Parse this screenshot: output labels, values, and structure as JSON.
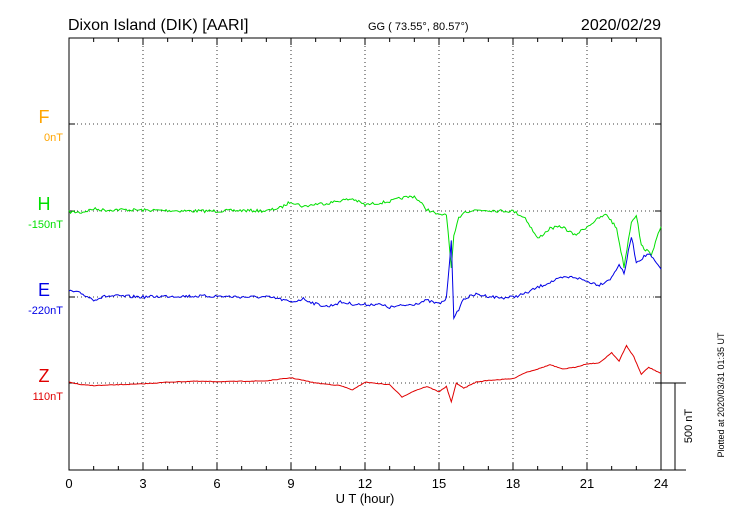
{
  "header": {
    "station": "Dixon Island (DIK)  [AARI]",
    "coords": "GG ( 73.55°,  80.57°)",
    "date": "2020/02/29"
  },
  "footer": {
    "plotted": "Plotted at 2020/03/31 01:35 UT"
  },
  "colors": {
    "F": "#ffa500",
    "H": "#00e000",
    "E": "#0000e6",
    "Z": "#e00000"
  },
  "chart_data": {
    "type": "line",
    "xlabel": "U T (hour)",
    "x_ticks": [
      "0",
      "3",
      "6",
      "9",
      "12",
      "15",
      "18",
      "21",
      "24"
    ],
    "xlim": [
      0,
      24
    ],
    "scale_bar": "500 nT",
    "grid": true,
    "series": [
      {
        "name": "F",
        "baseline": "0nT",
        "points": []
      },
      {
        "name": "H",
        "baseline": "-150nT",
        "points": [
          [
            0,
            -5
          ],
          [
            0.5,
            -8
          ],
          [
            1,
            12
          ],
          [
            1.5,
            5
          ],
          [
            2,
            8
          ],
          [
            3,
            5
          ],
          [
            4,
            3
          ],
          [
            5,
            0
          ],
          [
            6,
            0
          ],
          [
            7,
            3
          ],
          [
            8,
            0
          ],
          [
            8.6,
            20
          ],
          [
            9,
            55
          ],
          [
            9.5,
            25
          ],
          [
            10,
            40
          ],
          [
            10.5,
            45
          ],
          [
            11,
            60
          ],
          [
            11.5,
            70
          ],
          [
            12,
            35
          ],
          [
            12.5,
            45
          ],
          [
            13,
            55
          ],
          [
            13.5,
            75
          ],
          [
            14,
            85
          ],
          [
            14.3,
            40
          ],
          [
            14.5,
            10
          ],
          [
            15,
            -25
          ],
          [
            15.3,
            -15
          ],
          [
            15.5,
            -330
          ],
          [
            15.6,
            -150
          ],
          [
            15.8,
            -40
          ],
          [
            16,
            -5
          ],
          [
            16.5,
            5
          ],
          [
            17,
            5
          ],
          [
            17.5,
            0
          ],
          [
            18,
            0
          ],
          [
            18.5,
            -40
          ],
          [
            19,
            -160
          ],
          [
            19.5,
            -100
          ],
          [
            20,
            -90
          ],
          [
            20.5,
            -140
          ],
          [
            21,
            -90
          ],
          [
            21.5,
            -40
          ],
          [
            21.8,
            -20
          ],
          [
            22.2,
            -100
          ],
          [
            22.5,
            -320
          ],
          [
            22.8,
            -60
          ],
          [
            23,
            -20
          ],
          [
            23.2,
            -200
          ],
          [
            23.6,
            -250
          ],
          [
            24,
            -90
          ]
        ]
      },
      {
        "name": "E",
        "baseline": "-220nT",
        "points": [
          [
            0,
            35
          ],
          [
            0.5,
            20
          ],
          [
            1,
            -15
          ],
          [
            1.5,
            5
          ],
          [
            2,
            5
          ],
          [
            3,
            0
          ],
          [
            4,
            5
          ],
          [
            5,
            5
          ],
          [
            6,
            5
          ],
          [
            7,
            0
          ],
          [
            8,
            0
          ],
          [
            8.5,
            -10
          ],
          [
            9,
            -30
          ],
          [
            9.5,
            -10
          ],
          [
            10,
            -40
          ],
          [
            10.5,
            -55
          ],
          [
            11,
            -30
          ],
          [
            11.5,
            -40
          ],
          [
            12,
            -45
          ],
          [
            12.5,
            -40
          ],
          [
            13,
            -60
          ],
          [
            13.5,
            -50
          ],
          [
            14,
            -40
          ],
          [
            14.5,
            -20
          ],
          [
            15,
            -40
          ],
          [
            15.3,
            -10
          ],
          [
            15.5,
            330
          ],
          [
            15.6,
            -130
          ],
          [
            15.8,
            -70
          ],
          [
            16,
            -10
          ],
          [
            16.5,
            15
          ],
          [
            17,
            5
          ],
          [
            17.5,
            -5
          ],
          [
            18,
            0
          ],
          [
            18.5,
            20
          ],
          [
            19,
            55
          ],
          [
            19.5,
            85
          ],
          [
            20,
            110
          ],
          [
            20.5,
            115
          ],
          [
            21,
            90
          ],
          [
            21.5,
            70
          ],
          [
            22,
            110
          ],
          [
            22.3,
            190
          ],
          [
            22.5,
            130
          ],
          [
            22.8,
            350
          ],
          [
            23,
            200
          ],
          [
            23.5,
            250
          ],
          [
            24,
            160
          ]
        ]
      },
      {
        "name": "Z",
        "baseline": "110nT",
        "points": [
          [
            0,
            5
          ],
          [
            0.5,
            -10
          ],
          [
            1,
            -15
          ],
          [
            2,
            -10
          ],
          [
            3,
            -5
          ],
          [
            4,
            5
          ],
          [
            5,
            10
          ],
          [
            6,
            8
          ],
          [
            7,
            10
          ],
          [
            8,
            12
          ],
          [
            9,
            30
          ],
          [
            10,
            0
          ],
          [
            11,
            -15
          ],
          [
            11.5,
            -40
          ],
          [
            12,
            5
          ],
          [
            13,
            -10
          ],
          [
            13.5,
            -80
          ],
          [
            14,
            -45
          ],
          [
            14.5,
            -20
          ],
          [
            15,
            -50
          ],
          [
            15.3,
            -20
          ],
          [
            15.5,
            -110
          ],
          [
            15.7,
            0
          ],
          [
            16,
            -30
          ],
          [
            16.5,
            5
          ],
          [
            17,
            15
          ],
          [
            17.5,
            20
          ],
          [
            18,
            25
          ],
          [
            18.5,
            60
          ],
          [
            19,
            80
          ],
          [
            19.5,
            105
          ],
          [
            20,
            80
          ],
          [
            20.5,
            90
          ],
          [
            21,
            110
          ],
          [
            21.5,
            115
          ],
          [
            22,
            175
          ],
          [
            22.3,
            125
          ],
          [
            22.6,
            215
          ],
          [
            22.9,
            150
          ],
          [
            23.2,
            50
          ],
          [
            23.5,
            90
          ],
          [
            24,
            55
          ]
        ]
      }
    ]
  }
}
